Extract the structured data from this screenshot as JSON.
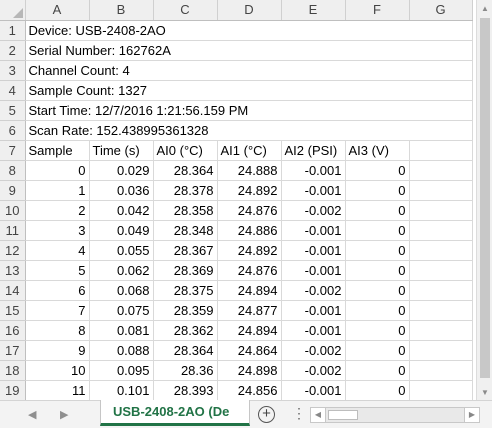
{
  "columns": [
    "A",
    "B",
    "C",
    "D",
    "E",
    "F",
    "G"
  ],
  "meta_rows": [
    {
      "row": "1",
      "text": "Device: USB-2408-2AO"
    },
    {
      "row": "2",
      "text": "Serial Number: 162762A"
    },
    {
      "row": "3",
      "text": "Channel Count: 4"
    },
    {
      "row": "4",
      "text": "Sample Count: 1327"
    },
    {
      "row": "5",
      "text": "Start Time: 12/7/2016 1:21:56.159 PM"
    },
    {
      "row": "6",
      "text": "Scan Rate: 152.438995361328"
    }
  ],
  "header_row": {
    "row": "7",
    "cells": [
      "Sample",
      "Time (s)",
      "AI0 (°C)",
      "AI1 (°C)",
      "AI2 (PSI)",
      "AI3 (V)"
    ]
  },
  "data_rows": [
    {
      "row": "8",
      "cells": [
        "0",
        "0.029",
        "28.364",
        "24.888",
        "-0.001",
        "0"
      ]
    },
    {
      "row": "9",
      "cells": [
        "1",
        "0.036",
        "28.378",
        "24.892",
        "-0.001",
        "0"
      ]
    },
    {
      "row": "10",
      "cells": [
        "2",
        "0.042",
        "28.358",
        "24.876",
        "-0.002",
        "0"
      ]
    },
    {
      "row": "11",
      "cells": [
        "3",
        "0.049",
        "28.348",
        "24.886",
        "-0.001",
        "0"
      ]
    },
    {
      "row": "12",
      "cells": [
        "4",
        "0.055",
        "28.367",
        "24.892",
        "-0.001",
        "0"
      ]
    },
    {
      "row": "13",
      "cells": [
        "5",
        "0.062",
        "28.369",
        "24.876",
        "-0.001",
        "0"
      ]
    },
    {
      "row": "14",
      "cells": [
        "6",
        "0.068",
        "28.375",
        "24.894",
        "-0.002",
        "0"
      ]
    },
    {
      "row": "15",
      "cells": [
        "7",
        "0.075",
        "28.359",
        "24.877",
        "-0.001",
        "0"
      ]
    },
    {
      "row": "16",
      "cells": [
        "8",
        "0.081",
        "28.362",
        "24.894",
        "-0.001",
        "0"
      ]
    },
    {
      "row": "17",
      "cells": [
        "9",
        "0.088",
        "28.364",
        "24.864",
        "-0.002",
        "0"
      ]
    },
    {
      "row": "18",
      "cells": [
        "10",
        "0.095",
        "28.36",
        "24.898",
        "-0.002",
        "0"
      ]
    },
    {
      "row": "19",
      "cells": [
        "11",
        "0.101",
        "28.393",
        "24.856",
        "-0.001",
        "0"
      ]
    }
  ],
  "sheet_tab": {
    "label": "USB-2408-2AO (De"
  },
  "bottom": {
    "add_sheet": "+",
    "more": "⋮",
    "prev_sheet": "◀",
    "next_sheet": "▶"
  },
  "accent_color": "#217346"
}
